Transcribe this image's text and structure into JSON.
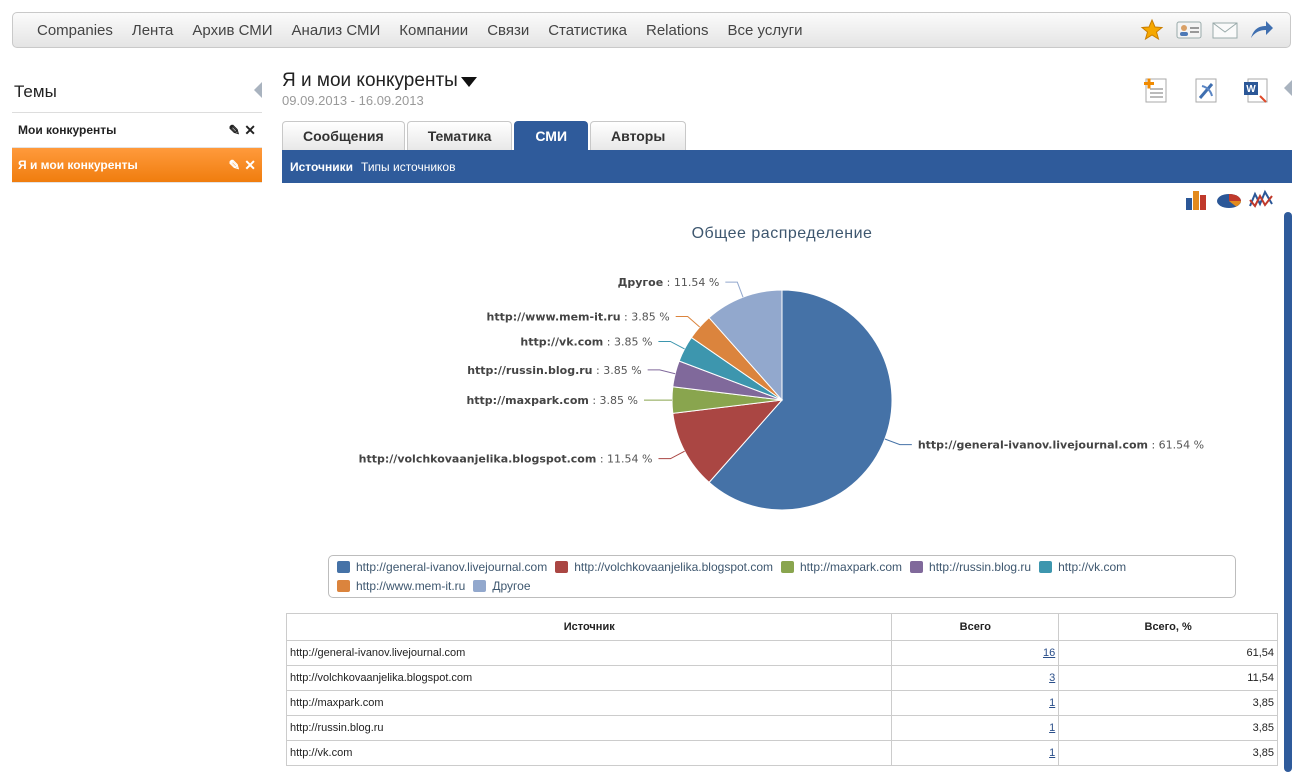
{
  "topnav": [
    "Companies",
    "Лента",
    "Архив СМИ",
    "Анализ СМИ",
    "Компании",
    "Связи",
    "Статистика",
    "Relations",
    "Все услуги"
  ],
  "icons": {
    "top": [
      "star-icon",
      "contact-card-icon",
      "envelope-icon",
      "share-arrow-icon"
    ],
    "actions": [
      "add-document-icon",
      "rss-feed-icon",
      "word-export-icon"
    ],
    "chart_types": [
      "bar-chart-icon",
      "pie-chart-icon",
      "line-chart-icon"
    ]
  },
  "sidebar": {
    "title": "Темы",
    "items": [
      {
        "label": "Мои конкуренты",
        "active": false
      },
      {
        "label": "Я и мои конкуренты",
        "active": true
      }
    ]
  },
  "main": {
    "title": "Я и мои конкуренты",
    "dates": "09.09.2013 - 16.09.2013",
    "tabs": [
      {
        "label": "Сообщения",
        "active": false
      },
      {
        "label": "Тематика",
        "active": false
      },
      {
        "label": "СМИ",
        "active": true
      },
      {
        "label": "Авторы",
        "active": false
      }
    ],
    "subtabs": {
      "current": "Источники",
      "other": "Типы источников"
    }
  },
  "chart_data": {
    "type": "pie",
    "title": "Общее распределение",
    "slices": [
      {
        "name": "http://general-ivanov.livejournal.com",
        "value": 61.54,
        "color": "#4572A7"
      },
      {
        "name": "http://volchkovaanjelika.blogspot.com",
        "value": 11.54,
        "color": "#AA4643"
      },
      {
        "name": "http://maxpark.com",
        "value": 3.85,
        "color": "#89A54E"
      },
      {
        "name": "http://russin.blog.ru",
        "value": 3.85,
        "color": "#80699B"
      },
      {
        "name": "http://vk.com",
        "value": 3.85,
        "color": "#3D96AE"
      },
      {
        "name": "http://www.mem-it.ru",
        "value": 3.85,
        "color": "#DB843D"
      },
      {
        "name": "Другое",
        "value": 11.54,
        "color": "#92A8CD"
      }
    ],
    "label_suffix": " %",
    "legend": "bottom"
  },
  "table": {
    "headers": [
      "Источник",
      "Всего",
      "Всего, %"
    ],
    "rows": [
      [
        "http://general-ivanov.livejournal.com",
        "16",
        "61,54"
      ],
      [
        "http://volchkovaanjelika.blogspot.com",
        "3",
        "11,54"
      ],
      [
        "http://maxpark.com",
        "1",
        "3,85"
      ],
      [
        "http://russin.blog.ru",
        "1",
        "3,85"
      ],
      [
        "http://vk.com",
        "1",
        "3,85"
      ]
    ]
  }
}
